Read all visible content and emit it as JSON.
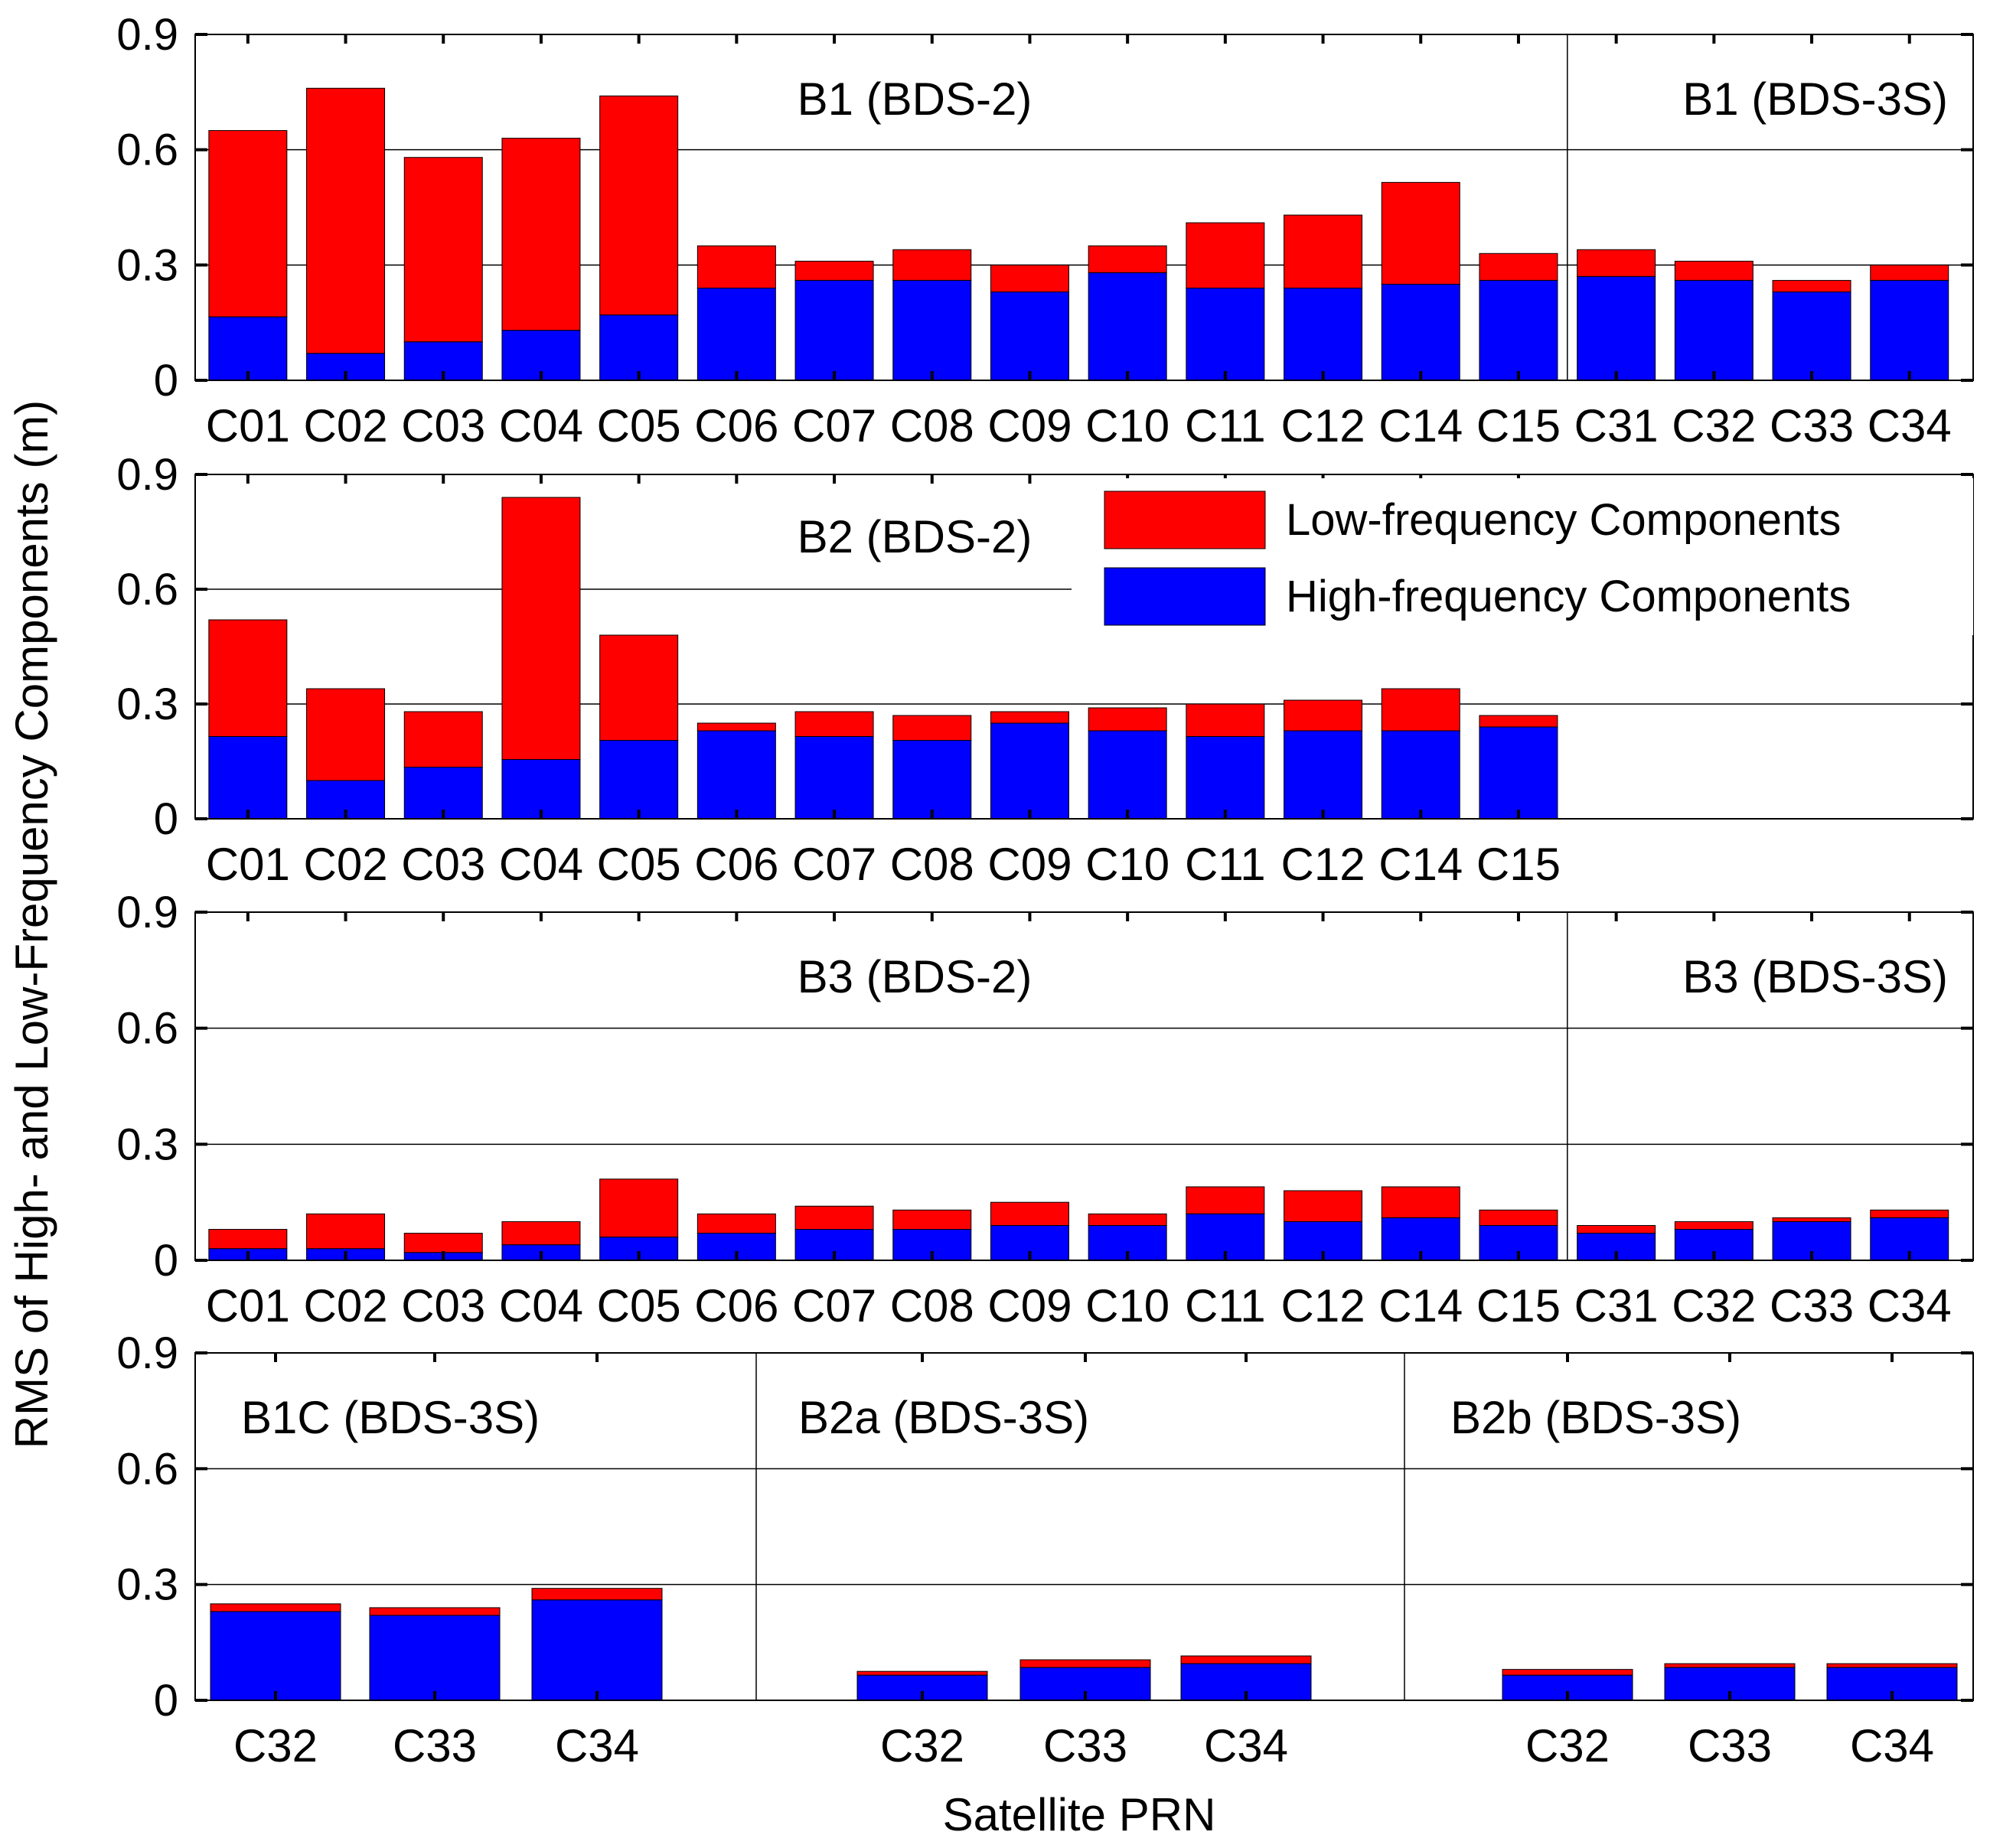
{
  "chart_data": {
    "type": "stacked-bar",
    "ylabel": "RMS of High- and Low-Frequency Components (m)",
    "xlabel": "Satellite PRN",
    "ylim": [
      0,
      0.9
    ],
    "yticks": [
      "0",
      "0.3",
      "0.6",
      "0.9"
    ],
    "legend": {
      "position": "top-right of second panel",
      "entries": [
        {
          "name": "Low-frequency Components",
          "color": "#ff0000"
        },
        {
          "name": "High-frequency Components",
          "color": "#0000ff"
        }
      ]
    },
    "colors": {
      "low": "#ff0000",
      "high": "#0000ff"
    },
    "panels": [
      {
        "sections": [
          {
            "title": "B1 (BDS-2)",
            "categories": [
              "C01",
              "C02",
              "C03",
              "C04",
              "C05",
              "C06",
              "C07",
              "C08",
              "C09",
              "C10",
              "C11",
              "C12",
              "C14",
              "C15"
            ],
            "high": [
              0.165,
              0.07,
              0.1,
              0.13,
              0.17,
              0.24,
              0.26,
              0.26,
              0.23,
              0.28,
              0.24,
              0.24,
              0.25,
              0.26
            ],
            "total": [
              0.65,
              0.76,
              0.58,
              0.63,
              0.74,
              0.35,
              0.31,
              0.34,
              0.3,
              0.35,
              0.41,
              0.43,
              0.515,
              0.33
            ]
          },
          {
            "title": "B1 (BDS-3S)",
            "categories": [
              "C31",
              "C32",
              "C33",
              "C34"
            ],
            "high": [
              0.27,
              0.26,
              0.23,
              0.26
            ],
            "total": [
              0.34,
              0.31,
              0.26,
              0.3
            ]
          }
        ]
      },
      {
        "sections": [
          {
            "title": "B2 (BDS-2)",
            "categories": [
              "C01",
              "C02",
              "C03",
              "C04",
              "C05",
              "C06",
              "C07",
              "C08",
              "C09",
              "C10",
              "C11",
              "C12",
              "C14",
              "C15"
            ],
            "high": [
              0.215,
              0.1,
              0.135,
              0.155,
              0.205,
              0.23,
              0.215,
              0.205,
              0.25,
              0.23,
              0.215,
              0.23,
              0.23,
              0.24
            ],
            "total": [
              0.52,
              0.34,
              0.28,
              0.84,
              0.48,
              0.25,
              0.28,
              0.27,
              0.28,
              0.29,
              0.3,
              0.31,
              0.34,
              0.27
            ]
          }
        ]
      },
      {
        "sections": [
          {
            "title": "B3 (BDS-2)",
            "categories": [
              "C01",
              "C02",
              "C03",
              "C04",
              "C05",
              "C06",
              "C07",
              "C08",
              "C09",
              "C10",
              "C11",
              "C12",
              "C14",
              "C15"
            ],
            "high": [
              0.03,
              0.03,
              0.02,
              0.04,
              0.06,
              0.07,
              0.08,
              0.08,
              0.09,
              0.09,
              0.12,
              0.1,
              0.11,
              0.09
            ],
            "total": [
              0.08,
              0.12,
              0.07,
              0.1,
              0.21,
              0.12,
              0.14,
              0.13,
              0.15,
              0.12,
              0.19,
              0.18,
              0.19,
              0.13
            ]
          },
          {
            "title": "B3 (BDS-3S)",
            "categories": [
              "C31",
              "C32",
              "C33",
              "C34"
            ],
            "high": [
              0.07,
              0.08,
              0.1,
              0.11
            ],
            "total": [
              0.09,
              0.1,
              0.11,
              0.13
            ]
          }
        ]
      },
      {
        "sections": [
          {
            "title": "B1C (BDS-3S)",
            "categories": [
              "C32",
              "C33",
              "C34"
            ],
            "high": [
              0.23,
              0.22,
              0.26
            ],
            "total": [
              0.25,
              0.24,
              0.29
            ]
          },
          {
            "title": "B2a (BDS-3S)",
            "categories": [
              "C32",
              "C33",
              "C34"
            ],
            "high": [
              0.065,
              0.085,
              0.095
            ],
            "total": [
              0.075,
              0.105,
              0.115
            ]
          },
          {
            "title": "B2b (BDS-3S)",
            "categories": [
              "C32",
              "C33",
              "C34"
            ],
            "high": [
              0.065,
              0.085,
              0.085
            ],
            "total": [
              0.08,
              0.095,
              0.095
            ]
          }
        ]
      }
    ]
  }
}
